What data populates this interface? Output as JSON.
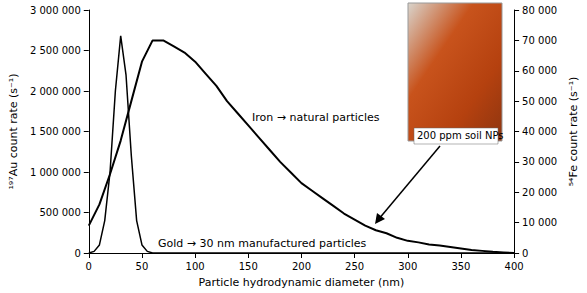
{
  "chart_data": {
    "type": "line",
    "xlabel": "Particle hydrodynamic diameter (nm)",
    "ylabel": "¹⁹⁷Au count rate (s⁻¹)",
    "y2label": "⁵⁴Fe count rate (s⁻¹)",
    "xlim": [
      0,
      400
    ],
    "xticks": [
      0,
      50,
      100,
      150,
      200,
      250,
      300,
      350,
      400
    ],
    "ylim": [
      0,
      3000000
    ],
    "yticks": [
      0,
      {
        "value": 500000,
        "label": "500 000"
      },
      {
        "value": 1000000,
        "label": "1 000 000"
      },
      {
        "value": 1500000,
        "label": "1 500 000"
      },
      {
        "value": 2000000,
        "label": "2 000 000"
      },
      {
        "value": 2500000,
        "label": "2 500 000"
      },
      {
        "value": 3000000,
        "label": "3 000 000"
      }
    ],
    "y2lim": [
      0,
      80000
    ],
    "y2ticks": [
      0,
      {
        "value": 10000,
        "label": "10 000"
      },
      {
        "value": 20000,
        "label": "20 000"
      },
      {
        "value": 30000,
        "label": "30 000"
      },
      {
        "value": 40000,
        "label": "40 000"
      },
      {
        "value": 50000,
        "label": "50 000"
      },
      {
        "value": 60000,
        "label": "60 000"
      },
      {
        "value": 70000,
        "label": "70 000"
      },
      {
        "value": 80000,
        "label": "80 000"
      }
    ],
    "grid": false,
    "annotations": [
      "200 ppm soil NPs"
    ],
    "series": [
      {
        "name": "Gold → 30 nm manufactured particles",
        "color": "#000000",
        "x": [
          0,
          5,
          10,
          15,
          20,
          25,
          30,
          35,
          40,
          45,
          50,
          55,
          60,
          70,
          400
        ],
        "values": [
          0,
          20000,
          100000,
          400000,
          1000000,
          2000000,
          2680000,
          2200000,
          1200000,
          400000,
          100000,
          20000,
          0,
          0,
          0
        ]
      },
      {
        "name": "Iron → natural particles",
        "color": "#000000",
        "axis": "y2",
        "x": [
          0,
          10,
          20,
          30,
          40,
          50,
          60,
          70,
          80,
          90,
          100,
          110,
          120,
          130,
          140,
          150,
          160,
          170,
          180,
          190,
          200,
          210,
          220,
          230,
          240,
          250,
          260,
          270,
          280,
          290,
          300,
          310,
          320,
          330,
          340,
          350,
          360,
          370,
          380,
          390,
          400
        ],
        "values": [
          9000,
          16000,
          26000,
          37000,
          50000,
          63000,
          70000,
          70000,
          68000,
          66000,
          63000,
          59000,
          55000,
          50000,
          46000,
          42000,
          38000,
          34000,
          30000,
          26500,
          23000,
          20500,
          18000,
          15500,
          13000,
          11000,
          9000,
          7500,
          6500,
          5000,
          4000,
          3500,
          2800,
          2500,
          2000,
          1500,
          1000,
          700,
          400,
          200,
          0
        ]
      }
    ]
  }
}
